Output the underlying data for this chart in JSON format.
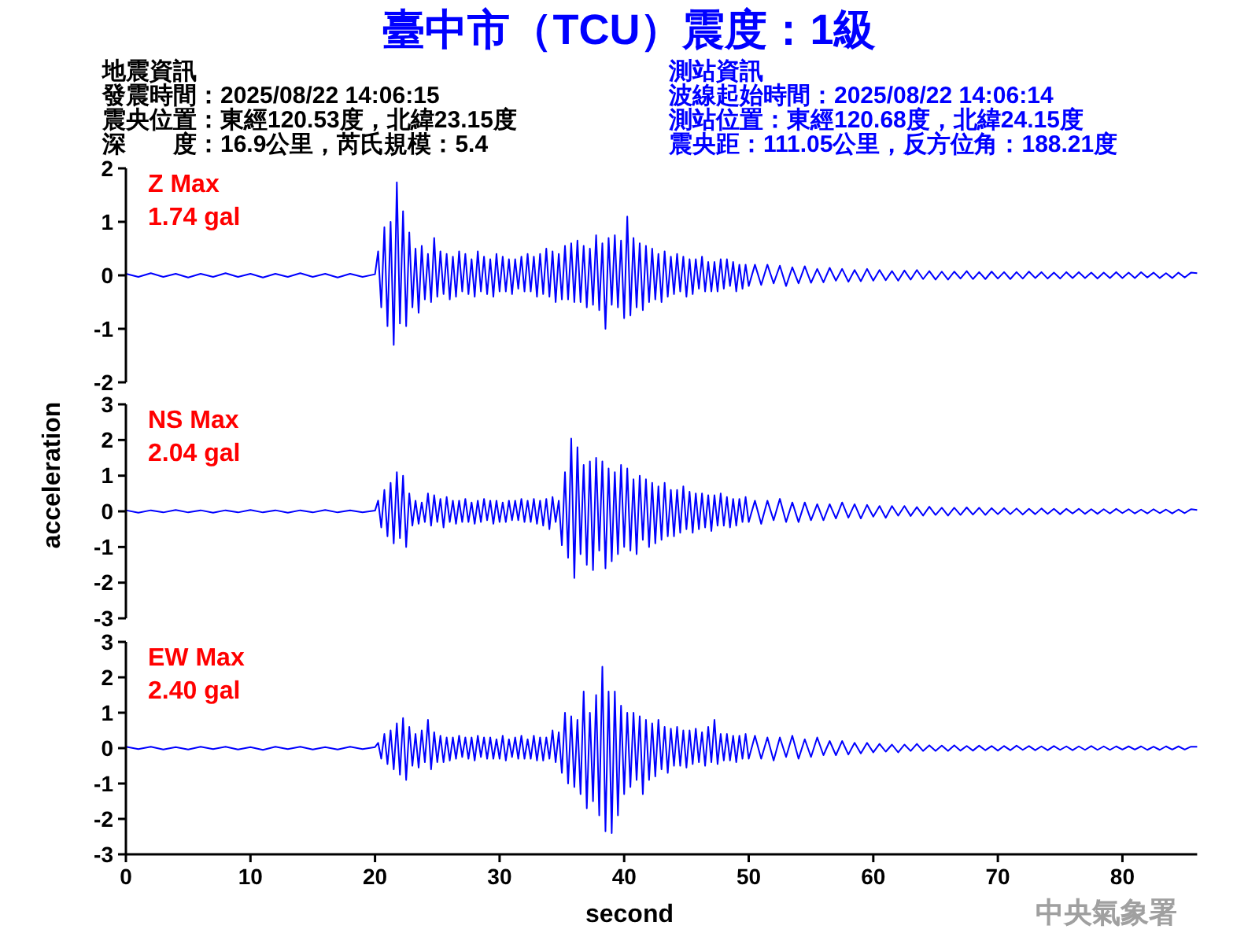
{
  "chart_data": [
    {
      "type": "other",
      "title": "臺中市（TCU）震度：1級",
      "annotations": [
        "地震資訊",
        "發震時間：2025/08/22 14:06:15",
        "震央位置：東經120.53度，北緯23.15度",
        "深　　度：16.9公里，芮氏規模：5.4",
        "測站資訊",
        "波線起始時間：2025/08/22 14:06:14",
        "測站位置：東經120.68度，北緯24.15度",
        "震央距：111.05公里，反方位角：188.21度"
      ]
    },
    {
      "type": "line",
      "ylim": [
        -2,
        2
      ],
      "yticks": [
        -2,
        -1,
        0,
        1,
        2
      ],
      "tick_labels": "y",
      "annotations": [
        "Z Max",
        "1.74 gal"
      ],
      "x": [
        0,
        1,
        2,
        3,
        4,
        5,
        6,
        7,
        8,
        9,
        10,
        11,
        12,
        13,
        14,
        15,
        16,
        17,
        18,
        19,
        20,
        20.25,
        20.5,
        20.75,
        21,
        21.25,
        21.5,
        21.75,
        22,
        22.25,
        22.5,
        22.75,
        23,
        23.25,
        23.5,
        23.75,
        24,
        24.25,
        24.5,
        24.75,
        25,
        25.25,
        25.5,
        25.75,
        26,
        26.25,
        26.5,
        26.75,
        27,
        27.25,
        27.5,
        27.75,
        28,
        28.25,
        28.5,
        28.75,
        29,
        29.25,
        29.5,
        29.75,
        30,
        30.25,
        30.5,
        30.75,
        31,
        31.25,
        31.5,
        31.75,
        32,
        32.25,
        32.5,
        32.75,
        33,
        33.25,
        33.5,
        33.75,
        34,
        34.25,
        34.5,
        34.75,
        35,
        35.25,
        35.5,
        35.75,
        36,
        36.25,
        36.5,
        36.75,
        37,
        37.25,
        37.5,
        37.75,
        38,
        38.25,
        38.5,
        38.75,
        39,
        39.25,
        39.5,
        39.75,
        40,
        40.25,
        40.5,
        40.75,
        41,
        41.25,
        41.5,
        41.75,
        42,
        42.25,
        42.5,
        42.75,
        43,
        43.25,
        43.5,
        43.75,
        44,
        44.25,
        44.5,
        44.75,
        45,
        45.25,
        45.5,
        45.75,
        46,
        46.25,
        46.5,
        46.75,
        47,
        47.25,
        47.5,
        47.75,
        48,
        48.25,
        48.5,
        48.75,
        49,
        49.25,
        49.5,
        49.75,
        50,
        50.5,
        51,
        51.5,
        52,
        52.5,
        53,
        53.5,
        54,
        54.5,
        55,
        55.5,
        56,
        56.5,
        57,
        57.5,
        58,
        58.5,
        59,
        59.5,
        60,
        60.5,
        61,
        61.5,
        62,
        62.5,
        63,
        63.5,
        64,
        64.5,
        65,
        65.5,
        66,
        66.5,
        67,
        67.5,
        68,
        68.5,
        69,
        69.5,
        70,
        70.5,
        71,
        71.5,
        72,
        72.5,
        73,
        73.5,
        74,
        74.5,
        75,
        75.5,
        76,
        76.5,
        77,
        77.5,
        78,
        78.5,
        79,
        79.5,
        80,
        80.5,
        81,
        81.5,
        82,
        82.5,
        83,
        83.5,
        84,
        84.5,
        85,
        85.5,
        86
      ],
      "series": [
        {
          "color": "#0000ff",
          "values": [
            0.03,
            -0.03,
            0.04,
            -0.03,
            0.03,
            -0.04,
            0.03,
            -0.03,
            0.04,
            -0.03,
            0.03,
            -0.04,
            0.03,
            -0.03,
            0.04,
            -0.03,
            0.03,
            -0.04,
            0.03,
            -0.03,
            0.02,
            0.45,
            -0.6,
            0.9,
            -0.95,
            1.0,
            -1.3,
            1.74,
            -0.9,
            1.2,
            -0.95,
            0.8,
            -0.6,
            0.5,
            -0.7,
            0.55,
            -0.45,
            0.4,
            -0.5,
            0.7,
            -0.4,
            0.45,
            -0.35,
            0.4,
            -0.45,
            0.35,
            -0.4,
            0.45,
            -0.3,
            0.4,
            -0.35,
            0.3,
            -0.4,
            0.45,
            -0.3,
            0.35,
            -0.35,
            0.3,
            -0.4,
            0.4,
            -0.3,
            0.35,
            -0.3,
            0.3,
            -0.35,
            0.3,
            -0.25,
            0.35,
            -0.3,
            0.4,
            -0.3,
            0.35,
            -0.4,
            0.4,
            -0.35,
            0.5,
            -0.4,
            0.45,
            -0.5,
            0.4,
            -0.45,
            0.55,
            -0.45,
            0.6,
            -0.5,
            0.65,
            -0.5,
            0.55,
            -0.6,
            0.5,
            -0.55,
            0.75,
            -0.65,
            0.6,
            -1.0,
            0.7,
            -0.55,
            0.75,
            -0.6,
            0.65,
            -0.8,
            1.1,
            -0.75,
            0.7,
            -0.6,
            0.6,
            -0.65,
            0.55,
            -0.5,
            0.5,
            -0.45,
            0.4,
            -0.5,
            0.45,
            -0.4,
            0.35,
            -0.35,
            0.4,
            -0.3,
            0.35,
            -0.4,
            0.3,
            -0.35,
            0.3,
            -0.25,
            0.35,
            -0.3,
            0.25,
            -0.3,
            0.25,
            -0.3,
            0.3,
            -0.25,
            0.3,
            -0.2,
            0.25,
            -0.3,
            0.2,
            -0.25,
            0.2,
            -0.2,
            0.2,
            -0.18,
            0.2,
            -0.15,
            0.18,
            -0.2,
            0.15,
            -0.15,
            0.17,
            -0.14,
            0.12,
            -0.13,
            0.14,
            -0.1,
            0.12,
            -0.12,
            0.1,
            -0.11,
            0.12,
            -0.1,
            0.1,
            -0.09,
            0.08,
            -0.1,
            0.09,
            -0.08,
            0.1,
            -0.07,
            0.08,
            -0.08,
            0.07,
            -0.08,
            0.07,
            -0.06,
            0.08,
            -0.07,
            0.06,
            -0.07,
            0.07,
            -0.06,
            0.06,
            -0.07,
            0.06,
            -0.06,
            0.07,
            -0.05,
            0.06,
            -0.06,
            0.05,
            -0.06,
            0.06,
            -0.05,
            0.06,
            -0.05,
            0.05,
            -0.06,
            0.05,
            -0.05,
            0.06,
            -0.05,
            0.05,
            -0.05,
            0.06,
            -0.04,
            0.05,
            -0.05,
            0.04,
            -0.05,
            0.05,
            -0.04,
            0.05,
            0.04
          ]
        }
      ]
    },
    {
      "type": "line",
      "ylim": [
        -3,
        3
      ],
      "yticks": [
        -3,
        -2,
        -1,
        0,
        1,
        2,
        3
      ],
      "tick_labels": "y",
      "ylabel": "acceleration",
      "annotations": [
        "NS Max",
        "2.04 gal"
      ],
      "x": [
        0,
        1,
        2,
        3,
        4,
        5,
        6,
        7,
        8,
        9,
        10,
        11,
        12,
        13,
        14,
        15,
        16,
        17,
        18,
        19,
        20,
        20.25,
        20.5,
        20.75,
        21,
        21.25,
        21.5,
        21.75,
        22,
        22.25,
        22.5,
        22.75,
        23,
        23.25,
        23.5,
        23.75,
        24,
        24.25,
        24.5,
        24.75,
        25,
        25.25,
        25.5,
        25.75,
        26,
        26.25,
        26.5,
        26.75,
        27,
        27.25,
        27.5,
        27.75,
        28,
        28.25,
        28.5,
        28.75,
        29,
        29.25,
        29.5,
        29.75,
        30,
        30.25,
        30.5,
        30.75,
        31,
        31.25,
        31.5,
        31.75,
        32,
        32.25,
        32.5,
        32.75,
        33,
        33.25,
        33.5,
        33.75,
        34,
        34.25,
        34.5,
        34.75,
        35,
        35.25,
        35.5,
        35.75,
        36,
        36.25,
        36.5,
        36.75,
        37,
        37.25,
        37.5,
        37.75,
        38,
        38.25,
        38.5,
        38.75,
        39,
        39.25,
        39.5,
        39.75,
        40,
        40.25,
        40.5,
        40.75,
        41,
        41.25,
        41.5,
        41.75,
        42,
        42.25,
        42.5,
        42.75,
        43,
        43.25,
        43.5,
        43.75,
        44,
        44.25,
        44.5,
        44.75,
        45,
        45.25,
        45.5,
        45.75,
        46,
        46.25,
        46.5,
        46.75,
        47,
        47.25,
        47.5,
        47.75,
        48,
        48.25,
        48.5,
        48.75,
        49,
        49.25,
        49.5,
        49.75,
        50,
        50.5,
        51,
        51.5,
        52,
        52.5,
        53,
        53.5,
        54,
        54.5,
        55,
        55.5,
        56,
        56.5,
        57,
        57.5,
        58,
        58.5,
        59,
        59.5,
        60,
        60.5,
        61,
        61.5,
        62,
        62.5,
        63,
        63.5,
        64,
        64.5,
        65,
        65.5,
        66,
        66.5,
        67,
        67.5,
        68,
        68.5,
        69,
        69.5,
        70,
        70.5,
        71,
        71.5,
        72,
        72.5,
        73,
        73.5,
        74,
        74.5,
        75,
        75.5,
        76,
        76.5,
        77,
        77.5,
        78,
        78.5,
        79,
        79.5,
        80,
        80.5,
        81,
        81.5,
        82,
        82.5,
        83,
        83.5,
        84,
        84.5,
        85,
        85.5,
        86
      ],
      "series": [
        {
          "color": "#0000ff",
          "values": [
            0.03,
            -0.04,
            0.03,
            -0.03,
            0.04,
            -0.03,
            0.03,
            -0.04,
            0.03,
            -0.03,
            0.04,
            -0.03,
            0.03,
            -0.04,
            0.03,
            -0.03,
            0.04,
            -0.03,
            0.03,
            -0.03,
            0.02,
            0.3,
            -0.45,
            0.6,
            -0.7,
            0.8,
            -0.9,
            1.1,
            -0.75,
            1.0,
            -1.0,
            0.5,
            -0.4,
            0.3,
            -0.35,
            0.25,
            -0.3,
            0.5,
            -0.4,
            0.45,
            -0.3,
            0.35,
            -0.45,
            0.4,
            -0.3,
            0.3,
            -0.35,
            0.3,
            -0.3,
            0.35,
            -0.3,
            0.25,
            -0.35,
            0.3,
            -0.3,
            0.35,
            -0.25,
            0.3,
            -0.35,
            0.3,
            -0.3,
            0.25,
            -0.3,
            0.3,
            -0.25,
            0.3,
            -0.25,
            0.35,
            -0.3,
            0.3,
            -0.3,
            0.35,
            -0.35,
            0.3,
            -0.4,
            0.35,
            -0.5,
            0.4,
            -0.3,
            0.3,
            -0.95,
            1.1,
            -1.3,
            2.04,
            -1.87,
            1.8,
            -1.2,
            1.3,
            -1.5,
            1.4,
            -1.65,
            1.5,
            -1.1,
            1.4,
            -1.6,
            1.2,
            -1.4,
            1.1,
            -1.2,
            1.3,
            -1.0,
            1.2,
            -1.1,
            0.9,
            -1.2,
            1.0,
            -0.8,
            0.9,
            -1.0,
            0.8,
            -0.9,
            0.7,
            -0.8,
            0.8,
            -0.7,
            0.6,
            -0.7,
            0.6,
            -0.6,
            0.7,
            -0.5,
            0.55,
            -0.6,
            0.5,
            -0.5,
            0.5,
            -0.45,
            0.45,
            -0.55,
            0.45,
            -0.4,
            0.5,
            -0.4,
            0.4,
            -0.45,
            0.35,
            -0.4,
            0.35,
            -0.3,
            0.4,
            -0.3,
            0.3,
            -0.35,
            0.3,
            -0.25,
            0.35,
            -0.3,
            0.25,
            -0.3,
            0.25,
            -0.25,
            0.2,
            -0.25,
            0.2,
            -0.2,
            0.25,
            -0.18,
            0.2,
            -0.2,
            0.18,
            -0.15,
            0.15,
            -0.18,
            0.15,
            -0.12,
            0.15,
            -0.13,
            0.12,
            -0.12,
            0.13,
            -0.1,
            0.1,
            -0.12,
            0.1,
            -0.1,
            0.11,
            -0.09,
            0.1,
            -0.1,
            0.09,
            -0.08,
            0.09,
            -0.08,
            0.08,
            -0.09,
            0.07,
            -0.08,
            0.08,
            -0.07,
            0.07,
            -0.08,
            0.07,
            -0.06,
            0.07,
            -0.07,
            0.06,
            -0.07,
            0.06,
            -0.06,
            0.07,
            -0.05,
            0.06,
            -0.06,
            0.05,
            -0.06,
            0.06,
            -0.05,
            0.05,
            -0.06,
            0.05,
            -0.05,
            0.06,
            0.04
          ]
        }
      ]
    },
    {
      "type": "line",
      "xlim": [
        0,
        86
      ],
      "xticks": [
        0,
        10,
        20,
        30,
        40,
        50,
        60,
        70,
        80
      ],
      "ylim": [
        -3,
        3
      ],
      "yticks": [
        -3,
        -2,
        -1,
        0,
        1,
        2,
        3
      ],
      "xlabel": "second",
      "annotations": [
        "EW Max",
        "2.40 gal",
        "中央氣象署"
      ],
      "x": [
        0,
        1,
        2,
        3,
        4,
        5,
        6,
        7,
        8,
        9,
        10,
        11,
        12,
        13,
        14,
        15,
        16,
        17,
        18,
        19,
        20,
        20.25,
        20.5,
        20.75,
        21,
        21.25,
        21.5,
        21.75,
        22,
        22.25,
        22.5,
        22.75,
        23,
        23.25,
        23.5,
        23.75,
        24,
        24.25,
        24.5,
        24.75,
        25,
        25.25,
        25.5,
        25.75,
        26,
        26.25,
        26.5,
        26.75,
        27,
        27.25,
        27.5,
        27.75,
        28,
        28.25,
        28.5,
        28.75,
        29,
        29.25,
        29.5,
        29.75,
        30,
        30.25,
        30.5,
        30.75,
        31,
        31.25,
        31.5,
        31.75,
        32,
        32.25,
        32.5,
        32.75,
        33,
        33.25,
        33.5,
        33.75,
        34,
        34.25,
        34.5,
        34.75,
        35,
        35.25,
        35.5,
        35.75,
        36,
        36.25,
        36.5,
        36.75,
        37,
        37.25,
        37.5,
        37.75,
        38,
        38.25,
        38.5,
        38.75,
        39,
        39.25,
        39.5,
        39.75,
        40,
        40.25,
        40.5,
        40.75,
        41,
        41.25,
        41.5,
        41.75,
        42,
        42.25,
        42.5,
        42.75,
        43,
        43.25,
        43.5,
        43.75,
        44,
        44.25,
        44.5,
        44.75,
        45,
        45.25,
        45.5,
        45.75,
        46,
        46.25,
        46.5,
        46.75,
        47,
        47.25,
        47.5,
        47.75,
        48,
        48.25,
        48.5,
        48.75,
        49,
        49.25,
        49.5,
        49.75,
        50,
        50.5,
        51,
        51.5,
        52,
        52.5,
        53,
        53.5,
        54,
        54.5,
        55,
        55.5,
        56,
        56.5,
        57,
        57.5,
        58,
        58.5,
        59,
        59.5,
        60,
        60.5,
        61,
        61.5,
        62,
        62.5,
        63,
        63.5,
        64,
        64.5,
        65,
        65.5,
        66,
        66.5,
        67,
        67.5,
        68,
        68.5,
        69,
        69.5,
        70,
        70.5,
        71,
        71.5,
        72,
        72.5,
        73,
        73.5,
        74,
        74.5,
        75,
        75.5,
        76,
        76.5,
        77,
        77.5,
        78,
        78.5,
        79,
        79.5,
        80,
        80.5,
        81,
        81.5,
        82,
        82.5,
        83,
        83.5,
        84,
        84.5,
        85,
        85.5,
        86
      ],
      "series": [
        {
          "color": "#0000ff",
          "values": [
            0.04,
            -0.03,
            0.04,
            -0.04,
            0.03,
            -0.04,
            0.04,
            -0.03,
            0.04,
            -0.04,
            0.03,
            -0.05,
            0.04,
            -0.03,
            0.04,
            -0.04,
            0.03,
            -0.04,
            0.04,
            -0.03,
            0.03,
            0.15,
            -0.3,
            0.4,
            -0.45,
            0.5,
            -0.6,
            0.7,
            -0.75,
            0.85,
            -0.9,
            0.6,
            -0.5,
            0.4,
            -0.55,
            0.5,
            -0.4,
            0.8,
            -0.6,
            0.45,
            -0.4,
            0.35,
            -0.4,
            0.3,
            -0.35,
            0.3,
            -0.3,
            0.35,
            -0.25,
            0.3,
            -0.3,
            0.3,
            -0.35,
            0.35,
            -0.25,
            0.3,
            -0.3,
            0.3,
            -0.3,
            0.25,
            -0.3,
            0.35,
            -0.35,
            0.25,
            -0.25,
            0.3,
            -0.3,
            0.35,
            -0.3,
            0.25,
            -0.3,
            0.35,
            -0.35,
            0.3,
            -0.35,
            0.3,
            -0.3,
            0.5,
            -0.4,
            0.45,
            -0.7,
            1.0,
            -1.0,
            0.9,
            -1.1,
            0.8,
            -1.3,
            1.6,
            -1.7,
            1.0,
            -1.5,
            1.5,
            -1.9,
            2.3,
            -2.35,
            1.6,
            -2.4,
            1.6,
            -1.9,
            1.2,
            -1.3,
            1.0,
            -1.1,
            1.0,
            -0.9,
            0.9,
            -1.3,
            0.8,
            -0.9,
            0.7,
            -0.8,
            0.8,
            -0.6,
            0.6,
            -0.7,
            0.55,
            -0.5,
            0.6,
            -0.5,
            0.5,
            -0.55,
            0.5,
            -0.45,
            0.55,
            -0.4,
            0.45,
            -0.5,
            0.6,
            -0.4,
            0.8,
            -0.45,
            0.4,
            -0.35,
            0.4,
            -0.35,
            0.35,
            -0.4,
            0.35,
            -0.3,
            0.4,
            -0.3,
            0.35,
            -0.3,
            0.3,
            -0.35,
            0.3,
            -0.25,
            0.35,
            -0.3,
            0.25,
            -0.25,
            0.3,
            -0.2,
            0.2,
            -0.2,
            0.2,
            -0.18,
            0.15,
            -0.15,
            0.15,
            -0.12,
            0.12,
            -0.1,
            0.1,
            -0.12,
            0.1,
            -0.08,
            0.12,
            -0.08,
            0.08,
            -0.08,
            0.07,
            -0.08,
            0.08,
            -0.07,
            0.06,
            -0.07,
            0.07,
            -0.06,
            0.06,
            -0.07,
            0.06,
            -0.06,
            0.07,
            -0.05,
            0.06,
            -0.06,
            0.05,
            -0.06,
            0.06,
            -0.05,
            0.05,
            -0.06,
            0.05,
            -0.05,
            0.06,
            -0.05,
            0.05,
            -0.05,
            0.05,
            -0.04,
            0.05,
            -0.04,
            0.05,
            -0.05,
            0.04,
            -0.05,
            0.05,
            -0.04,
            0.05,
            -0.04,
            0.04,
            0.04
          ]
        }
      ]
    }
  ]
}
